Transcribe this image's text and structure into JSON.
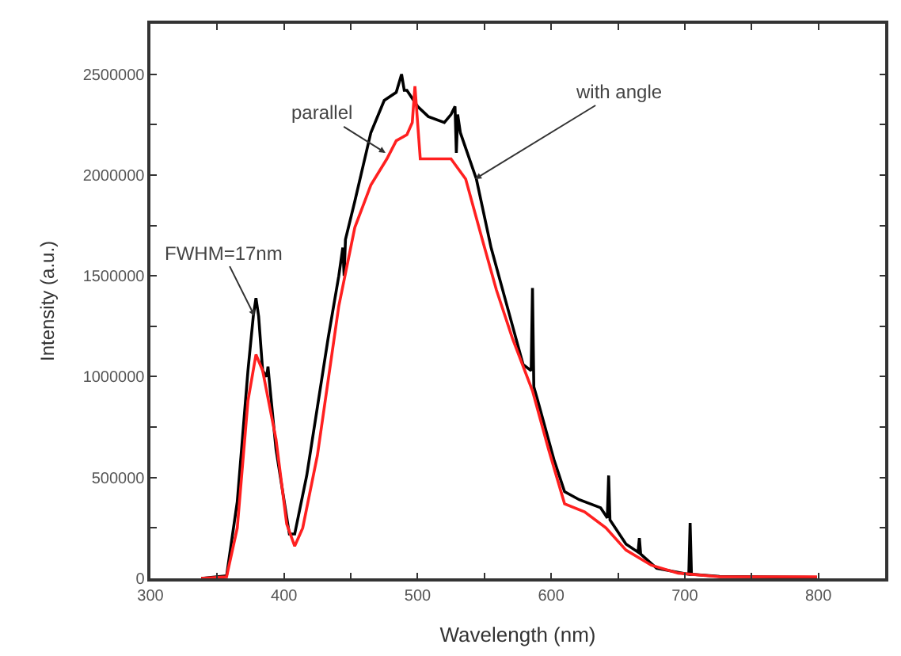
{
  "chart_data": {
    "type": "line",
    "xlabel": "Wavelength (nm)",
    "ylabel": "Intensity (a.u.)",
    "xlim": [
      300,
      850
    ],
    "ylim": [
      0,
      2750000
    ],
    "xticks": [
      300,
      {
        "value": 350,
        "label": null
      },
      400,
      {
        "value": 450,
        "label": null
      },
      500,
      {
        "value": 550,
        "label": null
      },
      600,
      {
        "value": 650,
        "label": null
      },
      700,
      {
        "value": 750,
        "label": null
      },
      800
    ],
    "yticks": [
      0,
      {
        "value": 250000,
        "label": null
      },
      500000,
      {
        "value": 750000,
        "label": null
      },
      1000000,
      {
        "value": 1250000,
        "label": null
      },
      1500000,
      {
        "value": 1750000,
        "label": null
      },
      2000000,
      {
        "value": 2250000,
        "label": null
      },
      2500000
    ],
    "marker": "none",
    "line_style": "solid",
    "series": [
      {
        "color": "#000000",
        "x": [
          338,
          357,
          365,
          373,
          377,
          379,
          381,
          384,
          387,
          388,
          389,
          394,
          404,
          408,
          417,
          433,
          441,
          444,
          445,
          446,
          453,
          465,
          475,
          484,
          488,
          490,
          492,
          500,
          508,
          520,
          525,
          528,
          529,
          530,
          532,
          544,
          555,
          567,
          579,
          585,
          586,
          587,
          590,
          602,
          610,
          621,
          637,
          642,
          643,
          644,
          656,
          665,
          666,
          667,
          679,
          703,
          704,
          705,
          726,
          799
        ],
        "values": [
          0,
          13000,
          380000,
          1030000,
          1300000,
          1390000,
          1300000,
          1030000,
          1000000,
          1050000,
          980000,
          640000,
          220000,
          220000,
          510000,
          1190000,
          1500000,
          1640000,
          1500000,
          1680000,
          1870000,
          2210000,
          2370000,
          2410000,
          2500000,
          2420000,
          2420000,
          2340000,
          2290000,
          2260000,
          2300000,
          2340000,
          2110000,
          2300000,
          2210000,
          1980000,
          1640000,
          1350000,
          1060000,
          1030000,
          1440000,
          950000,
          880000,
          590000,
          430000,
          390000,
          350000,
          300000,
          510000,
          290000,
          170000,
          130000,
          200000,
          120000,
          50000,
          20000,
          275000,
          20000,
          10000,
          5000
        ]
      },
      {
        "color": "#ff2020",
        "x": [
          338,
          357,
          365,
          373,
          379,
          384,
          394,
          402,
          408,
          414,
          425,
          441,
          453,
          465,
          477,
          484,
          492,
          496,
          498,
          502,
          516,
          525,
          536,
          548,
          559,
          571,
          586,
          598,
          610,
          625,
          641,
          656,
          675,
          695,
          726,
          799
        ],
        "values": [
          0,
          8000,
          250000,
          880000,
          1110000,
          1030000,
          690000,
          270000,
          160000,
          250000,
          610000,
          1350000,
          1740000,
          1950000,
          2080000,
          2170000,
          2200000,
          2260000,
          2440000,
          2080000,
          2080000,
          2080000,
          1980000,
          1690000,
          1430000,
          1190000,
          930000,
          640000,
          370000,
          330000,
          250000,
          140000,
          65000,
          26000,
          8000,
          8000
        ]
      }
    ],
    "annotations": [
      {
        "text": "FWHM=17nm",
        "x": 378,
        "y": 1300000
      },
      {
        "text": "parallel",
        "x": 476,
        "y": 2110000
      },
      {
        "text": "with angle",
        "x": 543,
        "y": 1980000
      }
    ]
  }
}
